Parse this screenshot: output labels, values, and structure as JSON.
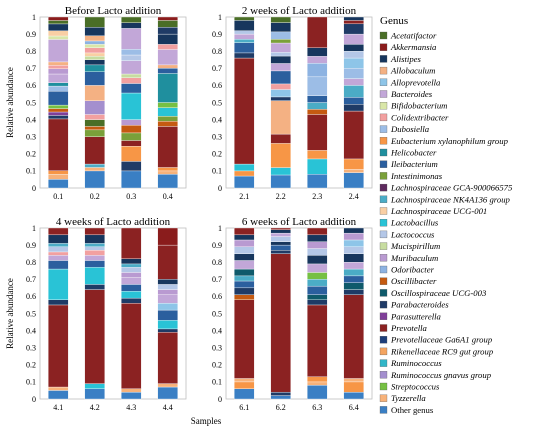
{
  "legend": {
    "title": "Genus",
    "items": [
      {
        "label": "Acetatifactor",
        "color": "#4a6e27",
        "italic": true
      },
      {
        "label": "Akkermansia",
        "color": "#8a1c1c",
        "italic": true
      },
      {
        "label": "Alistipes",
        "color": "#17365d",
        "italic": true
      },
      {
        "label": "Allobaculum",
        "color": "#f4b183",
        "italic": true
      },
      {
        "label": "Alloprevotella",
        "color": "#8ec5e8",
        "italic": true
      },
      {
        "label": "Bacteroides",
        "color": "#c2a7d8",
        "italic": true
      },
      {
        "label": "Bifidobacterium",
        "color": "#d9e6a8",
        "italic": true
      },
      {
        "label": "Colidextribacter",
        "color": "#f2a0a0",
        "italic": true
      },
      {
        "label": "Dubosiella",
        "color": "#9cbde6",
        "italic": true
      },
      {
        "label": "Eubacterium xylanophilum group",
        "color": "#f79646",
        "italic": true
      },
      {
        "label": "Helicobacter",
        "color": "#1f8f9e",
        "italic": true
      },
      {
        "label": "Ileibacterium",
        "color": "#2b5f9e",
        "italic": true
      },
      {
        "label": "Intestinimonas",
        "color": "#7aa03a",
        "italic": true
      },
      {
        "label": "Lachnospiraceae GCA-900066575",
        "color": "#5e2a5e",
        "italic": true
      },
      {
        "label": "Lachnospiraceae NK4A136 group",
        "color": "#4bacc6",
        "italic": true
      },
      {
        "label": "Lachnospiraceae UCG-001",
        "color": "#f9cfa4",
        "italic": true
      },
      {
        "label": "Lactobacillus",
        "color": "#29c3d6",
        "italic": true
      },
      {
        "label": "Lactococcus",
        "color": "#b4c7e7",
        "italic": true
      },
      {
        "label": "Mucispirillum",
        "color": "#c7dca0",
        "italic": true
      },
      {
        "label": "Muribaculum",
        "color": "#b99ad1",
        "italic": true
      },
      {
        "label": "Odoribacter",
        "color": "#8db3e2",
        "italic": true
      },
      {
        "label": "Oscillibacter",
        "color": "#c55a11",
        "italic": true
      },
      {
        "label": "Oscillospiraceae UCG-003",
        "color": "#0f5a6b",
        "italic": true
      },
      {
        "label": "Parabacteroides",
        "color": "#1f3b66",
        "italic": true
      },
      {
        "label": "Parasutterella",
        "color": "#7f3f98",
        "italic": true
      },
      {
        "label": "Prevotella",
        "color": "#8b2222",
        "italic": true
      },
      {
        "label": "Prevotellaceae Ga6A1 group",
        "color": "#1e3f7a",
        "italic": true
      },
      {
        "label": "Rikenellaceae RC9 gut group",
        "color": "#f4a460",
        "italic": true
      },
      {
        "label": "Ruminococcus",
        "color": "#31b6c8",
        "italic": true
      },
      {
        "label": "Ruminococcus gnavus group",
        "color": "#a48fce",
        "italic": true
      },
      {
        "label": "Streptococcus",
        "color": "#76c043",
        "italic": true
      },
      {
        "label": "Tyzzerella",
        "color": "#f7b27a",
        "italic": true
      },
      {
        "label": "Other genus",
        "color": "#3a7fc4",
        "italic": false
      }
    ]
  },
  "chart_data": [
    {
      "type": "bar",
      "stacked": true,
      "title": "Before  Lacto addition",
      "xlabel": "",
      "ylabel": "Relative abundance",
      "ylim": [
        0,
        1
      ],
      "yticks": [
        "0",
        "0.1",
        "0.2",
        "0.3",
        "0.4",
        "0.5",
        "0.6",
        "0.7",
        "0.8",
        "0.9",
        "1"
      ],
      "categories": [
        "0.1",
        "0.2",
        "0.3",
        "0.4"
      ],
      "bars": [
        [
          0.05,
          0.03,
          0.02,
          0.3,
          0.02,
          0.02,
          0.02,
          0.02,
          0.08,
          0.03,
          0.02,
          0.05,
          0.03,
          0.02,
          0.02,
          0.13,
          0.02,
          0.03,
          0.04,
          0.02,
          0.02
        ],
        [
          0.1,
          0.02,
          0.02,
          0.16,
          0.04,
          0.02,
          0.04,
          0.03,
          0.08,
          0.09,
          0.08,
          0.04,
          0.03,
          0.02,
          0.02,
          0.03,
          0.02,
          0.02,
          0.03,
          0.05,
          0.06
        ],
        [
          0.09,
          0.05,
          0.08,
          0.03,
          0.04,
          0.04,
          0.03,
          0.14,
          0.05,
          0.03,
          0.02,
          0.07,
          0.03,
          0.03,
          0.11,
          0.03,
          0.03
        ],
        [
          0.08,
          0.02,
          0.02,
          0.24,
          0.03,
          0.03,
          0.05,
          0.03,
          0.17,
          0.03,
          0.02,
          0.09,
          0.03,
          0.06,
          0.04,
          0.04,
          0.02
        ]
      ],
      "bar_colors": [
        [
          "#3a7fc4",
          "#f7b27a",
          "#f79646",
          "#8b2222",
          "#1f3b66",
          "#7f3f98",
          "#c55a11",
          "#76c043",
          "#2b5f9e",
          "#9cbde6",
          "#1f8f9e",
          "#c2a7d8",
          "#b99ad1",
          "#f2a0a0",
          "#f4b183",
          "#c2a7d8",
          "#d9e6a8",
          "#f9cfa4",
          "#17365d",
          "#4a6e27",
          "#8a1c1c"
        ],
        [
          "#3a7fc4",
          "#f7b27a",
          "#4bacc6",
          "#8b2222",
          "#7aa03a",
          "#c55a11",
          "#4a6e27",
          "#f2a0a0",
          "#a48fce",
          "#f4b183",
          "#2b5f9e",
          "#1f8f9e",
          "#17365d",
          "#c7dca0",
          "#f9cfa4",
          "#f2a0a0",
          "#d9e6a8",
          "#8db3e2",
          "#f4b183",
          "#17365d",
          "#4a6e27"
        ],
        [
          "#3a7fc4",
          "#1f3b66",
          "#f79646",
          "#8b2222",
          "#7aa03a",
          "#c55a11",
          "#b99ad1",
          "#29c3d6",
          "#2b5f9e",
          "#f2a0a0",
          "#c7dca0",
          "#c2a7d8",
          "#b4c7e7",
          "#9cbde6",
          "#c2a7d8",
          "#17365d",
          "#4a6e27"
        ],
        [
          "#3a7fc4",
          "#f7b27a",
          "#f79646",
          "#8b2222",
          "#c55a11",
          "#7aa03a",
          "#29c3d6",
          "#76c043",
          "#1f8f9e",
          "#2b5f9e",
          "#f4b183",
          "#c2a7d8",
          "#f2a0a0",
          "#17365d",
          "#1f3b66",
          "#4a6e27",
          "#8a1c1c"
        ]
      ]
    },
    {
      "type": "bar",
      "stacked": true,
      "title": "2 weeks of Lacto addition",
      "xlabel": "",
      "ylabel": "",
      "ylim": [
        0,
        1
      ],
      "yticks": [
        "0",
        "0.1",
        "0.2",
        "0.3",
        "0.4",
        "0.5",
        "0.6",
        "0.7",
        "0.8",
        "0.9",
        "1"
      ],
      "categories": [
        "2.1",
        "2.2",
        "2.3",
        "2.4"
      ],
      "bars": [
        [
          0.07,
          0.03,
          0.04,
          0.62,
          0.03,
          0.06,
          0.02,
          0.03,
          0.02,
          0.06,
          0.02
        ],
        [
          0.07,
          0.04,
          0.13,
          0.05,
          0.18,
          0.02,
          0.04,
          0.03,
          0.07,
          0.04,
          0.04,
          0.02,
          0.05,
          0.02,
          0.04,
          0.05,
          0.03
        ],
        [
          0.08,
          0.09,
          0.05,
          0.21,
          0.03,
          0.04,
          0.04,
          0.11,
          0.08,
          0.04,
          0.05,
          0.18
        ],
        [
          0.09,
          0.02,
          0.06,
          0.28,
          0.04,
          0.04,
          0.07,
          0.04,
          0.06,
          0.06,
          0.04,
          0.04,
          0.06,
          0.06,
          0.02,
          0.02
        ]
      ],
      "bar_colors": [
        [
          "#3a7fc4",
          "#f79646",
          "#29c3d6",
          "#8b2222",
          "#1f3b66",
          "#2b5f9e",
          "#4bacc6",
          "#c2a7d8",
          "#b4c7e7",
          "#17365d",
          "#4a6e27"
        ],
        [
          "#3a7fc4",
          "#29c3d6",
          "#f79646",
          "#8b2222",
          "#f4b183",
          "#1f3b66",
          "#8ec5e8",
          "#f2a0a0",
          "#2b5f9e",
          "#c2a7d8",
          "#17365d",
          "#b4c7e7",
          "#c2a7d8",
          "#7aa03a",
          "#9cbde6",
          "#17365d",
          "#4a6e27"
        ],
        [
          "#3a7fc4",
          "#29c3d6",
          "#f79646",
          "#8b2222",
          "#c55a11",
          "#4bacc6",
          "#2b5f9e",
          "#9cbde6",
          "#8db3e2",
          "#c2a7d8",
          "#17365d",
          "#8b2222"
        ],
        [
          "#3a7fc4",
          "#f7b27a",
          "#f79646",
          "#8b2222",
          "#1f3b66",
          "#2b5f9e",
          "#4bacc6",
          "#c2a7d8",
          "#9cbde6",
          "#8ec5e8",
          "#b4c7e7",
          "#17365d",
          "#c2a7d8",
          "#1f3b66",
          "#8b2222",
          "#17365d"
        ]
      ]
    },
    {
      "type": "bar",
      "stacked": true,
      "title": "4 weeks of Lacto addition",
      "xlabel": "",
      "ylabel": "Relative abundance",
      "ylim": [
        0,
        1
      ],
      "yticks": [
        "0",
        "0.1",
        "0.2",
        "0.3",
        "0.4",
        "0.5",
        "0.6",
        "0.7",
        "0.8",
        "0.9",
        "1"
      ],
      "categories": [
        "4.1",
        "4.2",
        "4.3",
        "4.4"
      ],
      "bars": [
        [
          0.05,
          0.02,
          0.48,
          0.03,
          0.18,
          0.05,
          0.03,
          0.02,
          0.03,
          0.02,
          0.05,
          0.04
        ],
        [
          0.06,
          0.03,
          0.55,
          0.03,
          0.1,
          0.04,
          0.03,
          0.03,
          0.02,
          0.02,
          0.05,
          0.04
        ],
        [
          0.04,
          0.02,
          0.5,
          0.03,
          0.04,
          0.04,
          0.04,
          0.03,
          0.03,
          0.02,
          0.03,
          0.18
        ],
        [
          0.07,
          0.02,
          0.3,
          0.02,
          0.05,
          0.06,
          0.04,
          0.05,
          0.03,
          0.03,
          0.03,
          0.2,
          0.1
        ]
      ],
      "bar_colors": [
        [
          "#3a7fc4",
          "#f7b27a",
          "#8b2222",
          "#1f3b66",
          "#29c3d6",
          "#2b5f9e",
          "#c2a7d8",
          "#f2a0a0",
          "#b4c7e7",
          "#4bacc6",
          "#17365d",
          "#8b2222"
        ],
        [
          "#3a7fc4",
          "#29c3d6",
          "#8b2222",
          "#1f3b66",
          "#29c3d6",
          "#2b5f9e",
          "#c2a7d8",
          "#f2a0a0",
          "#b4c7e7",
          "#4bacc6",
          "#17365d",
          "#8b2222"
        ],
        [
          "#3a7fc4",
          "#f7b27a",
          "#8b2222",
          "#1f3b66",
          "#29c3d6",
          "#2b5f9e",
          "#c2a7d8",
          "#b99ad1",
          "#b4c7e7",
          "#4bacc6",
          "#17365d",
          "#8b2222"
        ],
        [
          "#3a7fc4",
          "#f7b27a",
          "#8b2222",
          "#1f3b66",
          "#29c3d6",
          "#2b5f9e",
          "#8ec5e8",
          "#c2a7d8",
          "#b99ad1",
          "#b4c7e7",
          "#17365d",
          "#8b2222",
          "#8a1c1c"
        ]
      ]
    },
    {
      "type": "bar",
      "stacked": true,
      "title": "6 weeks of Lacto addition",
      "xlabel": "Samples",
      "ylabel": "",
      "ylim": [
        0,
        1
      ],
      "yticks": [
        "0",
        "0.1",
        "0.2",
        "0.3",
        "0.4",
        "0.5",
        "0.6",
        "0.7",
        "0.8",
        "0.9",
        "1"
      ],
      "categories": [
        "6.1",
        "6.2",
        "6.3",
        "6.4"
      ],
      "bars": [
        [
          0.06,
          0.04,
          0.02,
          0.46,
          0.03,
          0.04,
          0.04,
          0.03,
          0.04,
          0.05,
          0.04,
          0.04,
          0.04,
          0.03,
          0.04
        ],
        [
          0.02,
          0.02,
          0.81,
          0.02,
          0.03,
          0.02,
          0.03,
          0.02,
          0.02,
          0.01
        ],
        [
          0.08,
          0.02,
          0.03,
          0.42,
          0.03,
          0.03,
          0.05,
          0.04,
          0.04,
          0.05,
          0.05,
          0.04,
          0.04,
          0.04,
          0.04
        ],
        [
          0.04,
          0.06,
          0.02,
          0.49,
          0.03,
          0.04,
          0.04,
          0.04,
          0.04,
          0.05,
          0.04,
          0.04,
          0.04,
          0.03
        ]
      ],
      "bar_colors": [
        [
          "#3a7fc4",
          "#f79646",
          "#f7b27a",
          "#8b2222",
          "#c55a11",
          "#1f3b66",
          "#2b5f9e",
          "#4bacc6",
          "#0f5a6b",
          "#c2a7d8",
          "#17365d",
          "#b4c7e7",
          "#b99ad1",
          "#17365d",
          "#8b2222"
        ],
        [
          "#3a7fc4",
          "#1f3b66",
          "#8b2222",
          "#1f3b66",
          "#2b5f9e",
          "#17365d",
          "#b4c7e7",
          "#c2a7d8",
          "#17365d",
          "#8b2222"
        ],
        [
          "#3a7fc4",
          "#f7b27a",
          "#f79646",
          "#8b2222",
          "#1f3b66",
          "#0f5a6b",
          "#2b5f9e",
          "#4bacc6",
          "#76c043",
          "#c2a7d8",
          "#17365d",
          "#b4c7e7",
          "#b99ad1",
          "#17365d",
          "#8b2222"
        ],
        [
          "#3a7fc4",
          "#f79646",
          "#f7b27a",
          "#8b2222",
          "#1f3b66",
          "#0f5a6b",
          "#2b5f9e",
          "#4bacc6",
          "#c2a7d8",
          "#17365d",
          "#b4c7e7",
          "#8ec5e8",
          "#b99ad1",
          "#17365d"
        ]
      ]
    }
  ]
}
